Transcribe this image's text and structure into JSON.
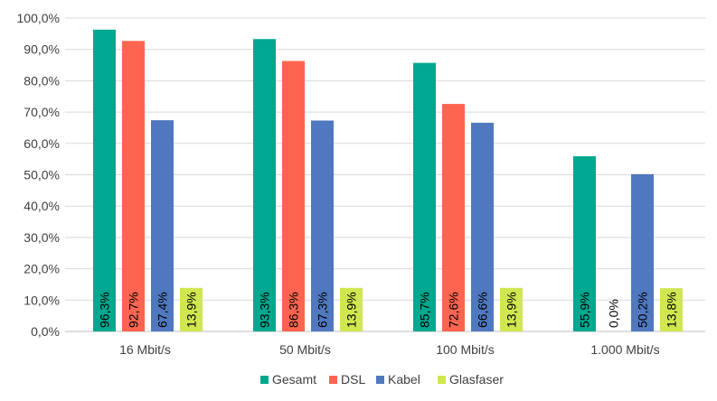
{
  "chart_data": {
    "type": "bar",
    "title": "",
    "xlabel": "",
    "ylabel": "",
    "ylim": [
      0,
      100
    ],
    "yticks": [
      "0,0%",
      "10,0%",
      "20,0%",
      "30,0%",
      "40,0%",
      "50,0%",
      "60,0%",
      "70,0%",
      "80,0%",
      "90,0%",
      "100,0%"
    ],
    "categories": [
      "16 Mbit/s",
      "50 Mbit/s",
      "100 Mbit/s",
      "1.000 Mbit/s"
    ],
    "series": [
      {
        "name": "Gesamt",
        "color": "#00a88f",
        "values": [
          96.3,
          93.3,
          85.7,
          55.9
        ],
        "labels": [
          "96,3%",
          "93,3%",
          "85,7%",
          "55,9%"
        ]
      },
      {
        "name": "DSL",
        "color": "#ff6450",
        "values": [
          92.7,
          86.3,
          72.6,
          0.0
        ],
        "labels": [
          "92,7%",
          "86,3%",
          "72,6%",
          "0,0%"
        ]
      },
      {
        "name": "Kabel",
        "color": "#5078be",
        "values": [
          67.4,
          67.3,
          66.6,
          50.2
        ],
        "labels": [
          "67,4%",
          "67,3%",
          "66,6%",
          "50,2%"
        ]
      },
      {
        "name": "Glasfaser",
        "color": "#d2e650",
        "values": [
          13.9,
          13.9,
          13.9,
          13.8
        ],
        "labels": [
          "13,9%",
          "13,9%",
          "13,9%",
          "13,8%"
        ]
      }
    ],
    "legend_position": "bottom",
    "grid": true
  }
}
